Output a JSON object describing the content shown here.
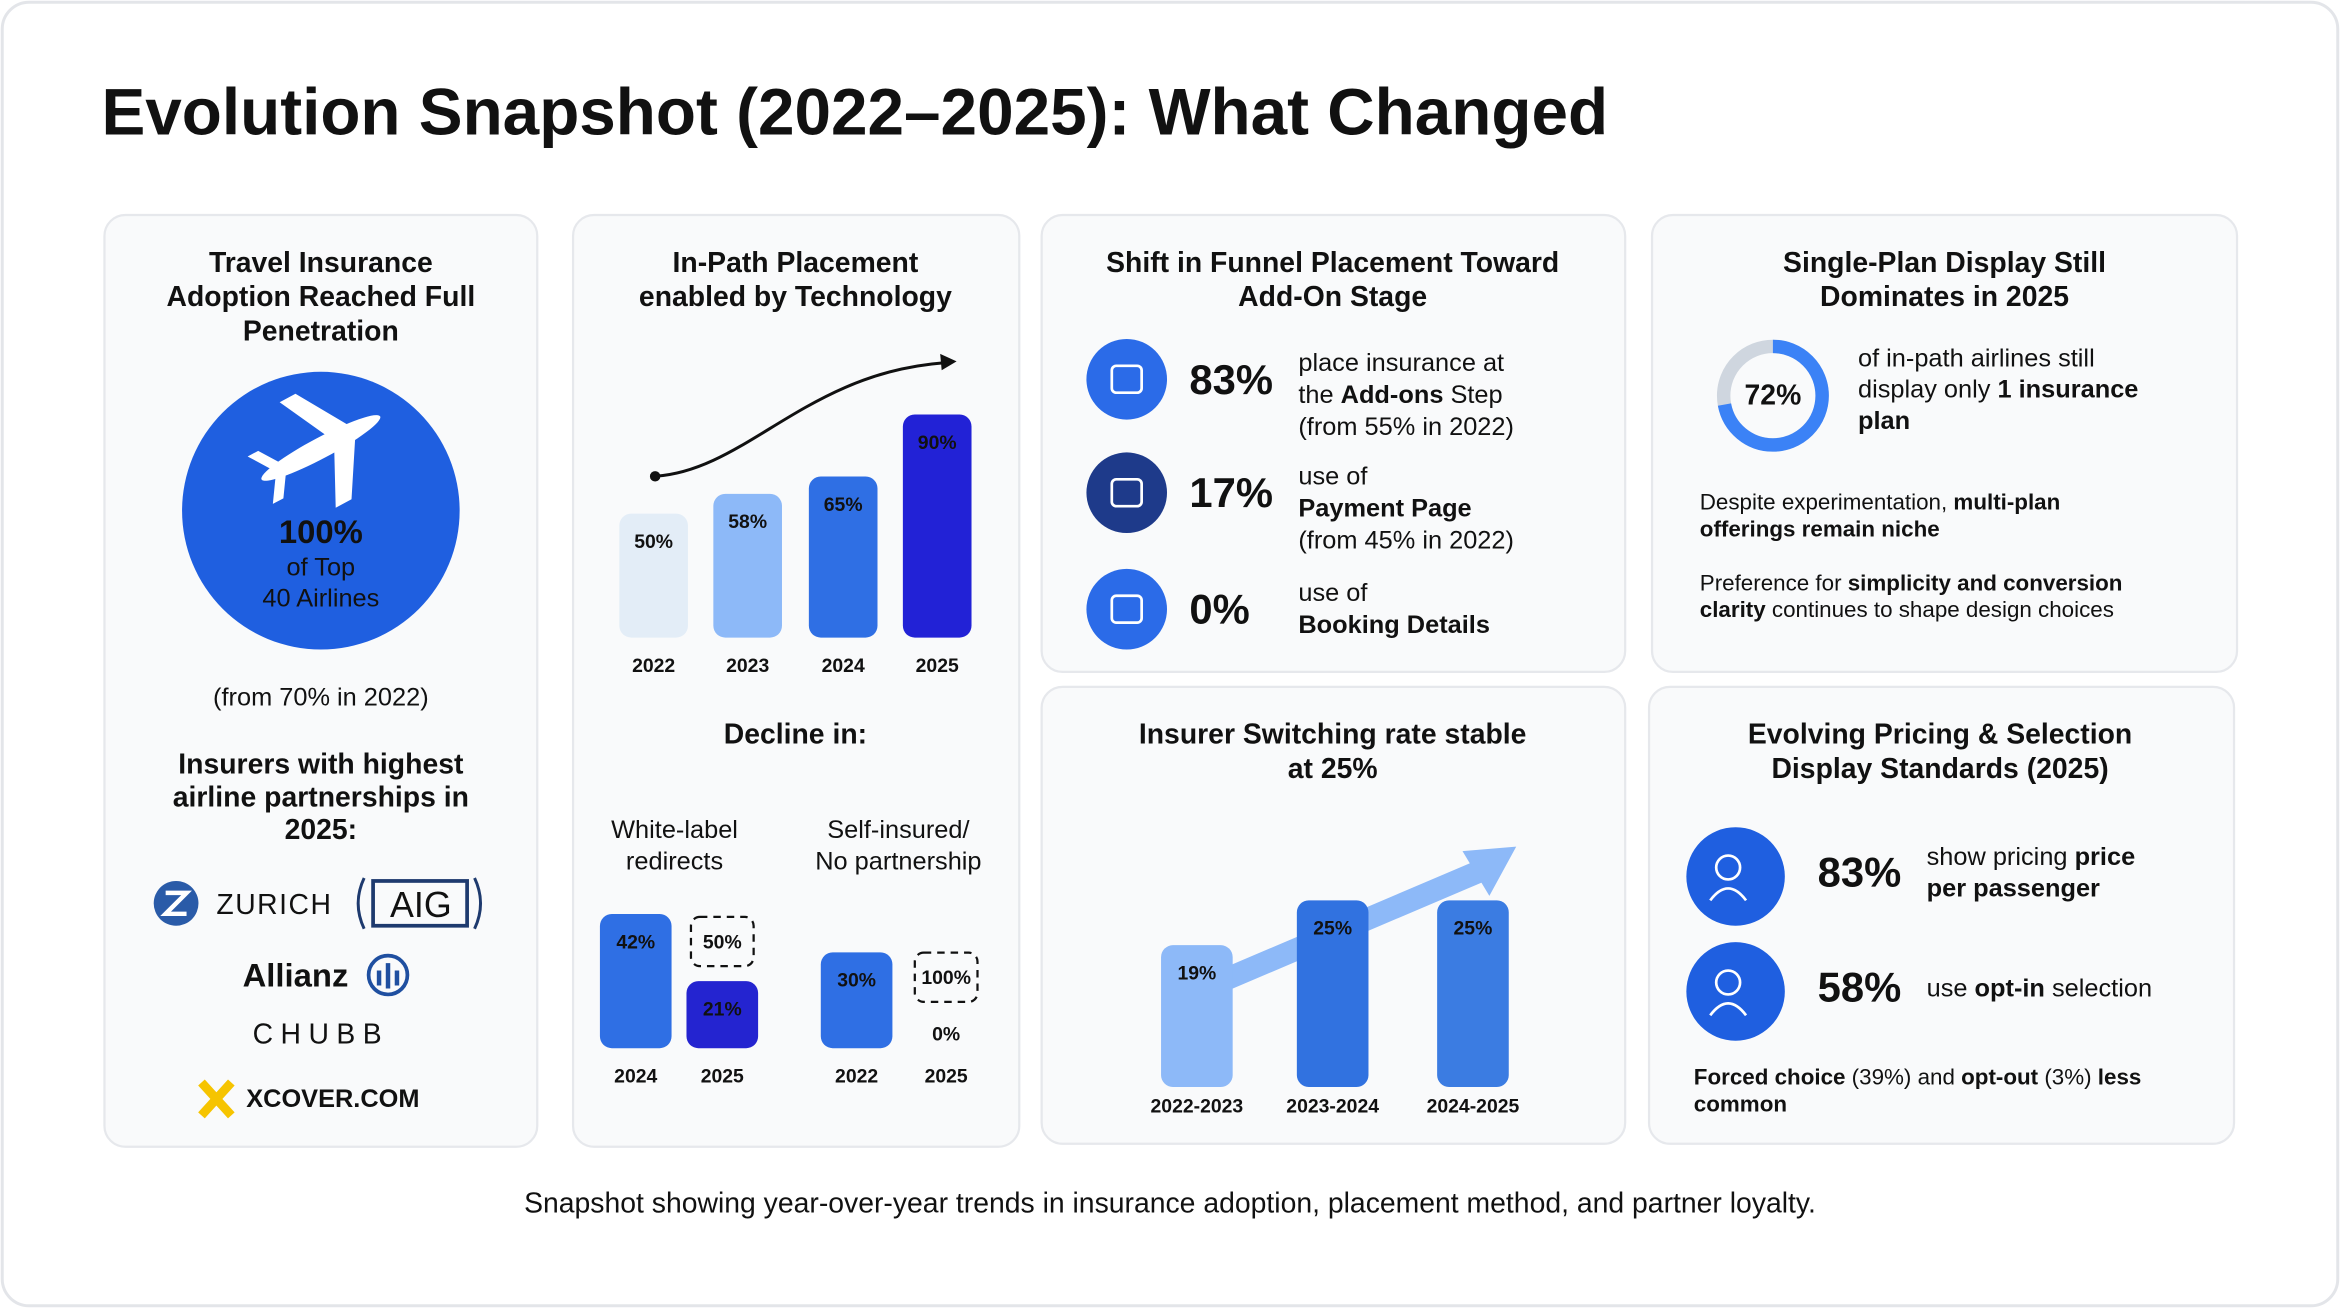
{
  "title": "Evolution Snapshot (2022–2025): What Changed",
  "adoption": {
    "heading": [
      "Travel Insurance",
      "Adoption Reached Full",
      "Penetration"
    ],
    "stat": "100%",
    "stat_caption": [
      "of Top",
      "40 Airlines"
    ],
    "note": "(from 70% in 2022)",
    "insurers_heading": [
      "Insurers with highest",
      "airline partnerships in",
      "2025:"
    ],
    "logos": {
      "zurich": "ZURICH",
      "aig": "AIG",
      "allianz": "Allianz",
      "chubb": "CHUBB",
      "xcover": "XCOVER.COM"
    }
  },
  "in_path": {
    "heading": [
      "In-Path Placement",
      "enabled by Technology"
    ],
    "bars": [
      {
        "year": "2022",
        "value": 50,
        "label": "50%",
        "color": "#e3edf7"
      },
      {
        "year": "2023",
        "value": 58,
        "label": "58%",
        "color": "#8db9f8"
      },
      {
        "year": "2024",
        "value": 65,
        "label": "65%",
        "color": "#2f6fe4"
      },
      {
        "year": "2025",
        "value": 90,
        "label": "90%",
        "color": "#2222d6"
      }
    ]
  },
  "decline": {
    "heading": "Decline in:",
    "groups": [
      {
        "label": [
          "White-label",
          "redirects"
        ],
        "bars": [
          {
            "year": "2024",
            "value": 42,
            "label": "42%",
            "color": "#2f6fe4"
          },
          {
            "year": "2025",
            "value": 21,
            "label": "21%",
            "color": "#2424d0",
            "previous": "50%"
          }
        ]
      },
      {
        "label": [
          "Self-insured/",
          "No partnership"
        ],
        "bars": [
          {
            "year": "2022",
            "value": 30,
            "label": "30%",
            "color": "#2f6fe4"
          },
          {
            "year": "2025",
            "value": 0,
            "label": "0%",
            "color": "#2424d0",
            "previous": "100%"
          }
        ]
      }
    ]
  },
  "funnel": {
    "heading": [
      "Shift in Funnel Placement Toward",
      "Add-On Stage"
    ],
    "rows": [
      {
        "stat": "83%",
        "lines": [
          [
            {
              "text": "place insurance at"
            }
          ],
          [
            {
              "text": "the "
            },
            {
              "text": "Add-ons",
              "bold": true
            },
            {
              "text": " Step"
            }
          ],
          [
            {
              "text": "(from 55% in 2022)"
            }
          ]
        ]
      },
      {
        "stat": "17%",
        "lines": [
          [
            {
              "text": "use of"
            }
          ],
          [
            {
              "text": "Payment Page",
              "bold": true
            }
          ],
          [
            {
              "text": "(from 45% in 2022)"
            }
          ]
        ]
      },
      {
        "stat": "0%",
        "lines": [
          [
            {
              "text": "use of"
            }
          ],
          [
            {
              "text": "Booking Details",
              "bold": true
            }
          ]
        ]
      }
    ]
  },
  "single_plan": {
    "heading": [
      "Single-Plan Display Still",
      "Dominates in 2025"
    ],
    "donut": {
      "value": 72,
      "label": "72%"
    },
    "lines": [
      [
        {
          "text": "of in-path airlines still"
        }
      ],
      [
        {
          "text": "display only "
        },
        {
          "text": "1 insurance",
          "bold": true
        }
      ],
      [
        {
          "text": "plan",
          "bold": true
        }
      ]
    ],
    "notes": [
      [
        [
          {
            "text": "Despite experimentation, "
          },
          {
            "text": "multi-plan",
            "bold": true
          }
        ],
        [
          {
            "text": "offerings remain niche",
            "bold": true
          }
        ]
      ],
      [
        [
          {
            "text": "Preference for "
          },
          {
            "text": "simplicity and conversion",
            "bold": true
          }
        ],
        [
          {
            "text": "clarity",
            "bold": true
          },
          {
            "text": " continues to shape design choices"
          }
        ]
      ]
    ]
  },
  "switching": {
    "heading": [
      "Insurer Switching rate stable",
      "at 25%"
    ],
    "bars": [
      {
        "period": "2022-2023",
        "value": 19,
        "label": "19%",
        "color": "#8db9f8"
      },
      {
        "period": "2023-2024",
        "value": 25,
        "label": "25%",
        "color": "#3172e0"
      },
      {
        "period": "2024-2025",
        "value": 25,
        "label": "25%",
        "color": "#3b7ce2"
      }
    ]
  },
  "pricing": {
    "heading": [
      "Evolving Pricing & Selection",
      "Display Standards (2025)"
    ],
    "rows": [
      {
        "stat": "83%",
        "lines": [
          [
            {
              "text": "show pricing "
            },
            {
              "text": "price",
              "bold": true
            }
          ],
          [
            {
              "text": "per passenger",
              "bold": true
            }
          ]
        ]
      },
      {
        "stat": "58%",
        "lines": [
          [
            {
              "text": "use "
            },
            {
              "text": "opt-in",
              "bold": true
            },
            {
              "text": " selection"
            }
          ]
        ]
      }
    ],
    "footnote": [
      [
        {
          "text": "Forced choice",
          "bold": true
        },
        {
          "text": " (39%) and "
        },
        {
          "text": "opt-out",
          "bold": true
        },
        {
          "text": " (3%) "
        },
        {
          "text": "less",
          "bold": true
        }
      ],
      [
        {
          "text": "common",
          "bold": true
        }
      ]
    ]
  },
  "footer": "Snapshot showing year-over-year trends in insurance adoption, placement method, and partner loyalty."
}
